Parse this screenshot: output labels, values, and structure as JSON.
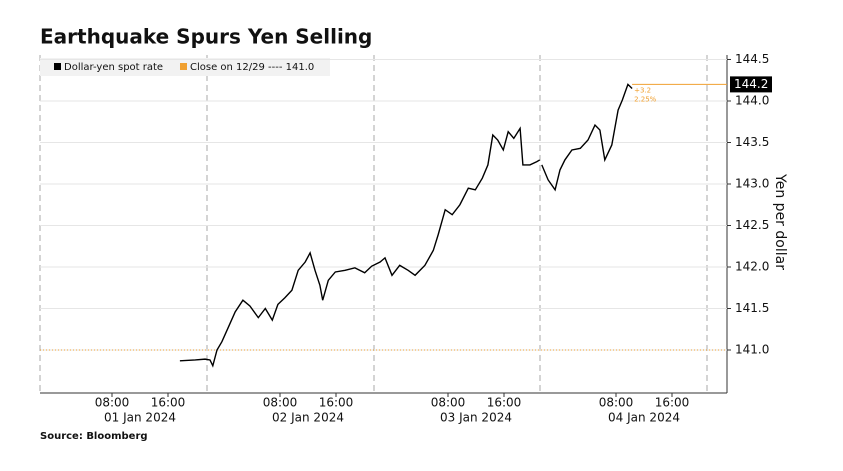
{
  "chart_data": {
    "type": "line",
    "title": "Earthquake Spurs Yen Selling",
    "source": "Source: Bloomberg",
    "y_label": "Yen per dollar",
    "series": [
      {
        "name": "Dollar-yen spot rate",
        "color": "#000000",
        "x": [
          17.7,
          19.9,
          21.3,
          22,
          22.4,
          23,
          23.7,
          24.6,
          25.6,
          26.7,
          27.7,
          28.9,
          29.9,
          30.9,
          31.7,
          32.7,
          33.7,
          34.6,
          35.6,
          36.3,
          37,
          37.7,
          38.1,
          38.9,
          39.9,
          41.3,
          42.7,
          44.1,
          45.1,
          46.3,
          47,
          48,
          49.1,
          50.3,
          51.3,
          52.7,
          53.9,
          54.6,
          55.6,
          56.6,
          57.7,
          58.9,
          59.9,
          60.9,
          61.7,
          62.4,
          63.1,
          63.9,
          64.6,
          65.4,
          66.3,
          66.7,
          67.7,
          68.7,
          69.1,
          69.25,
          69.4,
          70.3,
          71.3,
          72,
          72.7,
          73.7,
          74.9,
          76,
          77,
          77.7,
          78.4,
          79.4,
          80.3,
          80.9,
          81.7,
          82.3
        ],
        "values": [
          140.87,
          140.88,
          140.89,
          140.88,
          140.81,
          141.0,
          141.1,
          141.27,
          141.46,
          141.6,
          141.53,
          141.39,
          141.5,
          141.36,
          141.55,
          141.63,
          141.72,
          141.96,
          142.06,
          142.17,
          141.96,
          141.78,
          141.6,
          141.84,
          141.94,
          141.96,
          141.99,
          141.93,
          142.01,
          142.06,
          142.11,
          141.9,
          142.02,
          141.96,
          141.9,
          142.02,
          142.2,
          142.39,
          142.69,
          142.63,
          142.75,
          142.95,
          142.93,
          143.07,
          143.23,
          143.59,
          143.53,
          143.41,
          143.63,
          143.55,
          143.67,
          143.23,
          143.23,
          143.27,
          143.29,
          null,
          143.23,
          143.05,
          142.93,
          143.17,
          143.29,
          143.41,
          143.43,
          143.53,
          143.71,
          143.65,
          143.29,
          143.47,
          143.89,
          144.01,
          144.2,
          144.15
        ]
      }
    ],
    "last_value": {
      "value": 144.2,
      "label": "144.2"
    },
    "reference_line": {
      "name": "Close on 12/29 ---- 141.0",
      "value": 141.0,
      "color": "#f0a030"
    },
    "annotations": [
      "+3.2",
      "2.25%"
    ],
    "xlim": [
      -2.286,
      95.857
    ],
    "xticks": [
      {
        "value": 8,
        "label": "08:00"
      },
      {
        "value": 16,
        "label": "16:00"
      },
      {
        "value": 32,
        "label": "08:00"
      },
      {
        "value": 40,
        "label": "16:00"
      },
      {
        "value": 56,
        "label": "08:00"
      },
      {
        "value": 64,
        "label": "16:00"
      },
      {
        "value": 80,
        "label": "08:00"
      },
      {
        "value": 88,
        "label": "16:00"
      }
    ],
    "date_labels": [
      "01 Jan 2024",
      "02 Jan 2024",
      "03 Jan 2024",
      "04 Jan 2024"
    ],
    "ylim": [
      140.482,
      144.554
    ],
    "yticks": [
      {
        "value": 141.0,
        "label": "141.0"
      },
      {
        "value": 141.5,
        "label": "141.5"
      },
      {
        "value": 142.0,
        "label": "142.0"
      },
      {
        "value": 142.5,
        "label": "142.5"
      },
      {
        "value": 143.0,
        "label": "143.0"
      },
      {
        "value": 143.5,
        "label": "143.5"
      },
      {
        "value": 144.0,
        "label": "144.0"
      },
      {
        "value": 144.5,
        "label": "144.5"
      }
    ],
    "grid": true
  }
}
